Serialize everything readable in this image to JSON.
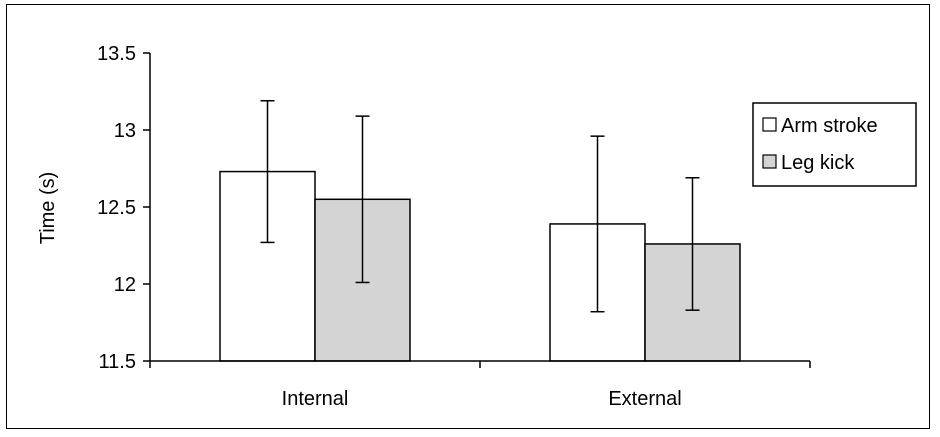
{
  "chart_data": {
    "type": "bar",
    "title": "",
    "xlabel": "",
    "ylabel": "Time (s)",
    "categories": [
      "Internal",
      "External"
    ],
    "series": [
      {
        "name": "Arm stroke",
        "color": "#ffffff",
        "values": [
          12.73,
          12.39
        ],
        "error": [
          0.46,
          0.57
        ]
      },
      {
        "name": "Leg kick",
        "color": "#d4d4d4",
        "values": [
          12.55,
          12.26
        ],
        "error": [
          0.54,
          0.43
        ]
      }
    ],
    "ylim": [
      11.5,
      13.5
    ],
    "yticks": [
      "11.5",
      "12",
      "12.5",
      "13",
      "13.5"
    ],
    "grid": false,
    "legend": "right"
  }
}
